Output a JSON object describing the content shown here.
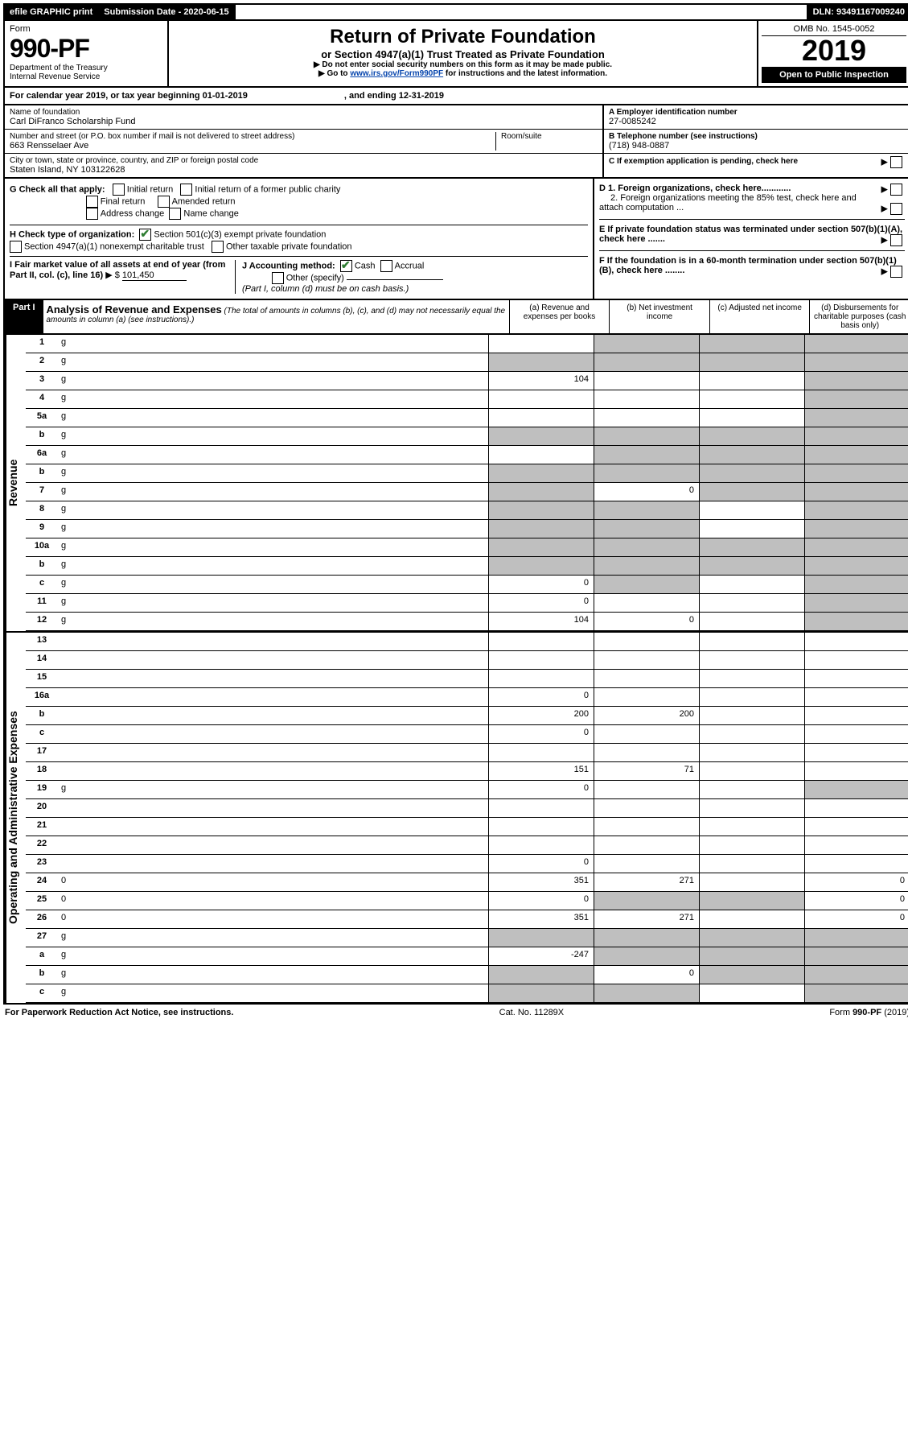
{
  "topbar": {
    "efile": "efile GRAPHIC print",
    "submission": "Submission Date - 2020-06-15",
    "dln": "DLN: 93491167009240"
  },
  "header": {
    "form_label": "Form",
    "form_no": "990-PF",
    "dept1": "Department of the Treasury",
    "dept2": "Internal Revenue Service",
    "title": "Return of Private Foundation",
    "subtitle": "or Section 4947(a)(1) Trust Treated as Private Foundation",
    "note1": "Do not enter social security numbers on this form as it may be made public.",
    "note2_pre": "Go to ",
    "note2_link": "www.irs.gov/Form990PF",
    "note2_post": " for instructions and the latest information.",
    "omb": "OMB No. 1545-0052",
    "year": "2019",
    "open": "Open to Public Inspection"
  },
  "calyear": {
    "text_a": "For calendar year 2019, or tax year beginning 01-01-2019",
    "text_b": ", and ending 12-31-2019"
  },
  "entity": {
    "name_label": "Name of foundation",
    "name": "Carl DiFranco Scholarship Fund",
    "addr_label": "Number and street (or P.O. box number if mail is not delivered to street address)",
    "addr": "663 Rensselaer Ave",
    "room_label": "Room/suite",
    "city_label": "City or town, state or province, country, and ZIP or foreign postal code",
    "city": "Staten Island, NY  103122628",
    "a_label": "A Employer identification number",
    "a_val": "27-0085242",
    "b_label": "B Telephone number (see instructions)",
    "b_val": "(718) 948-0887",
    "c_label": "C If exemption application is pending, check here"
  },
  "checks": {
    "g_label": "G Check all that apply:",
    "g_initial": "Initial return",
    "g_initial_former": "Initial return of a former public charity",
    "g_final": "Final return",
    "g_amended": "Amended return",
    "g_addr": "Address change",
    "g_name": "Name change",
    "h_label": "H Check type of organization:",
    "h_501c3": "Section 501(c)(3) exempt private foundation",
    "h_4947": "Section 4947(a)(1) nonexempt charitable trust",
    "h_other": "Other taxable private foundation",
    "i_label": "I Fair market value of all assets at end of year (from Part II, col. (c), line 16)",
    "i_val": "101,450",
    "j_label": "J Accounting method:",
    "j_cash": "Cash",
    "j_accrual": "Accrual",
    "j_other": "Other (specify)",
    "j_note": "(Part I, column (d) must be on cash basis.)",
    "d1": "D 1. Foreign organizations, check here............",
    "d2": "2. Foreign organizations meeting the 85% test, check here and attach computation ...",
    "e": "E  If private foundation status was terminated under section 507(b)(1)(A), check here .......",
    "f": "F  If the foundation is in a 60-month termination under section 507(b)(1)(B), check here ........"
  },
  "part1": {
    "label": "Part I",
    "title": "Analysis of Revenue and Expenses",
    "note": "(The total of amounts in columns (b), (c), and (d) may not necessarily equal the amounts in column (a) (see instructions).)",
    "col_a": "(a) Revenue and expenses per books",
    "col_b": "(b) Net investment income",
    "col_c": "(c) Adjusted net income",
    "col_d": "(d) Disbursements for charitable purposes (cash basis only)"
  },
  "sections": {
    "revenue": "Revenue",
    "expenses": "Operating and Administrative Expenses"
  },
  "lines": [
    {
      "n": "1",
      "d": "g",
      "a": "",
      "b": "g",
      "c": "g"
    },
    {
      "n": "2",
      "d": "g",
      "a": "g",
      "b": "g",
      "c": "g"
    },
    {
      "n": "3",
      "d": "g",
      "a": "104",
      "b": "",
      "c": ""
    },
    {
      "n": "4",
      "d": "g",
      "a": "",
      "b": "",
      "c": ""
    },
    {
      "n": "5a",
      "d": "g",
      "a": "",
      "b": "",
      "c": ""
    },
    {
      "n": "b",
      "d": "g",
      "a": "g",
      "b": "g",
      "c": "g"
    },
    {
      "n": "6a",
      "d": "g",
      "a": "",
      "b": "g",
      "c": "g"
    },
    {
      "n": "b",
      "d": "g",
      "a": "g",
      "b": "g",
      "c": "g"
    },
    {
      "n": "7",
      "d": "g",
      "a": "g",
      "b": "0",
      "c": "g"
    },
    {
      "n": "8",
      "d": "g",
      "a": "g",
      "b": "g",
      "c": ""
    },
    {
      "n": "9",
      "d": "g",
      "a": "g",
      "b": "g",
      "c": ""
    },
    {
      "n": "10a",
      "d": "g",
      "a": "g",
      "b": "g",
      "c": "g"
    },
    {
      "n": "b",
      "d": "g",
      "a": "g",
      "b": "g",
      "c": "g"
    },
    {
      "n": "c",
      "d": "g",
      "a": "0",
      "b": "g",
      "c": ""
    },
    {
      "n": "11",
      "d": "g",
      "a": "0",
      "b": "",
      "c": ""
    },
    {
      "n": "12",
      "d": "g",
      "a": "104",
      "b": "0",
      "c": ""
    }
  ],
  "explines": [
    {
      "n": "13",
      "d": "",
      "a": "",
      "b": "",
      "c": ""
    },
    {
      "n": "14",
      "d": "",
      "a": "",
      "b": "",
      "c": ""
    },
    {
      "n": "15",
      "d": "",
      "a": "",
      "b": "",
      "c": ""
    },
    {
      "n": "16a",
      "d": "",
      "a": "0",
      "b": "",
      "c": ""
    },
    {
      "n": "b",
      "d": "",
      "a": "200",
      "b": "200",
      "c": ""
    },
    {
      "n": "c",
      "d": "",
      "a": "0",
      "b": "",
      "c": ""
    },
    {
      "n": "17",
      "d": "",
      "a": "",
      "b": "",
      "c": ""
    },
    {
      "n": "18",
      "d": "",
      "a": "151",
      "b": "71",
      "c": ""
    },
    {
      "n": "19",
      "d": "g",
      "a": "0",
      "b": "",
      "c": ""
    },
    {
      "n": "20",
      "d": "",
      "a": "",
      "b": "",
      "c": ""
    },
    {
      "n": "21",
      "d": "",
      "a": "",
      "b": "",
      "c": ""
    },
    {
      "n": "22",
      "d": "",
      "a": "",
      "b": "",
      "c": ""
    },
    {
      "n": "23",
      "d": "",
      "a": "0",
      "b": "",
      "c": ""
    },
    {
      "n": "24",
      "d": "0",
      "a": "351",
      "b": "271",
      "c": ""
    },
    {
      "n": "25",
      "d": "0",
      "a": "0",
      "b": "g",
      "c": "g"
    },
    {
      "n": "26",
      "d": "0",
      "a": "351",
      "b": "271",
      "c": ""
    },
    {
      "n": "27",
      "d": "g",
      "a": "g",
      "b": "g",
      "c": "g"
    },
    {
      "n": "a",
      "d": "g",
      "a": "-247",
      "b": "g",
      "c": "g"
    },
    {
      "n": "b",
      "d": "g",
      "a": "g",
      "b": "0",
      "c": "g"
    },
    {
      "n": "c",
      "d": "g",
      "a": "g",
      "b": "g",
      "c": ""
    }
  ],
  "footer": {
    "left": "For Paperwork Reduction Act Notice, see instructions.",
    "mid": "Cat. No. 11289X",
    "right": "Form 990-PF (2019)"
  }
}
